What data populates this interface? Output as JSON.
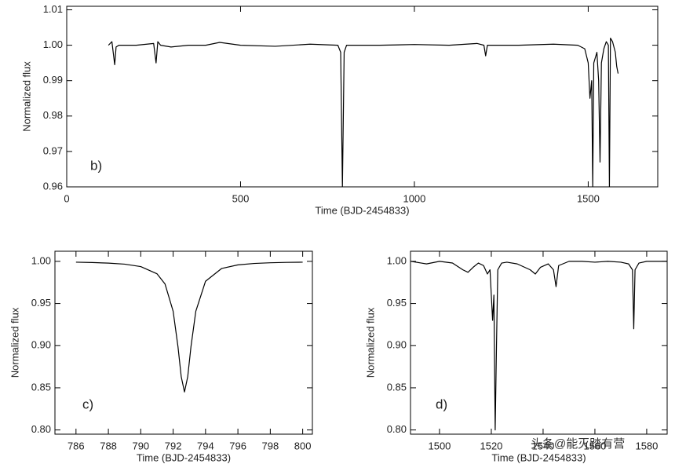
{
  "chart_data": [
    {
      "type": "line",
      "annotation": "b)",
      "x_label": "Time (BJD-2454833)",
      "y_label": "Normalized flux",
      "color": "#000000",
      "xlim": [
        0,
        1700
      ],
      "xticks": [
        0,
        500,
        1000,
        1500
      ],
      "ylim": [
        0.96,
        1.011
      ],
      "yticks": [
        0.96,
        0.97,
        0.98,
        0.99,
        {
          "value": 1,
          "label": "1.00"
        },
        1.01
      ],
      "x": [
        120,
        130,
        138,
        142,
        150,
        200,
        250,
        257,
        262,
        270,
        300,
        350,
        400,
        440,
        500,
        600,
        700,
        780,
        788,
        793,
        798,
        805,
        900,
        1000,
        1100,
        1180,
        1200,
        1205,
        1210,
        1300,
        1400,
        1470,
        1490,
        1500,
        1505,
        1510,
        1513,
        1516,
        1525,
        1530,
        1534,
        1538,
        1545,
        1552,
        1558,
        1561,
        1564,
        1570,
        1578,
        1582,
        1586
      ],
      "values": [
        1.0,
        1.001,
        0.9945,
        0.9995,
        1.0,
        1.0,
        1.0005,
        0.995,
        1.001,
        1.0,
        0.9995,
        1.0,
        1.0,
        1.0008,
        1.0,
        0.9997,
        1.0003,
        1.0,
        0.998,
        0.96,
        0.998,
        1.0,
        1.0,
        1.0002,
        1.0,
        1.0005,
        1.0,
        0.997,
        1.0,
        1.0,
        1.0003,
        1.0,
        0.999,
        0.995,
        0.985,
        0.99,
        0.96,
        0.995,
        0.998,
        0.99,
        0.967,
        0.995,
        0.999,
        1.001,
        1.0,
        0.96,
        1.002,
        1.001,
        0.998,
        0.994,
        0.992
      ]
    },
    {
      "type": "line",
      "annotation": "c)",
      "x_label": "Time (BJD-2454833)",
      "y_label": "Normalized flux",
      "color": "#000000",
      "xlim": [
        784.7,
        800.6
      ],
      "xticks": [
        786,
        788,
        790,
        792,
        794,
        796,
        798,
        800
      ],
      "ylim": [
        0.795,
        1.012
      ],
      "yticks": [
        {
          "value": 0.8,
          "label": "0.80"
        },
        0.85,
        {
          "value": 0.9,
          "label": "0.90"
        },
        0.95,
        {
          "value": 1,
          "label": "1.00"
        }
      ],
      "x": [
        786,
        787,
        788,
        789,
        790,
        791,
        791.5,
        792,
        792.3,
        792.5,
        792.7,
        792.9,
        793.1,
        793.4,
        794,
        795,
        796,
        797,
        798,
        799,
        800
      ],
      "values": [
        0.999,
        0.9986,
        0.9979,
        0.9967,
        0.9938,
        0.9853,
        0.9731,
        0.9408,
        0.8986,
        0.8631,
        0.845,
        0.8631,
        0.8986,
        0.9408,
        0.9764,
        0.9916,
        0.9958,
        0.9975,
        0.9983,
        0.9988,
        0.999
      ]
    },
    {
      "type": "line",
      "annotation": "d)",
      "x_label": "Time (BJD-2454833)",
      "y_label": "Normalized flux",
      "color": "#000000",
      "xlim": [
        1488.8,
        1587.9
      ],
      "xticks": [
        1500,
        1520,
        1540,
        1560,
        1580
      ],
      "ylim": [
        0.795,
        1.012
      ],
      "yticks": [
        {
          "value": 0.8,
          "label": "0.80"
        },
        0.85,
        {
          "value": 0.9,
          "label": "0.90"
        },
        0.95,
        {
          "value": 1,
          "label": "1.00"
        }
      ],
      "x": [
        1489,
        1493,
        1495,
        1500,
        1505,
        1509,
        1511,
        1513,
        1515,
        1517,
        1518.5,
        1519.5,
        1520.5,
        1521,
        1521.5,
        1522,
        1522.5,
        1524,
        1526,
        1530,
        1535,
        1537,
        1539,
        1542,
        1544,
        1545,
        1546,
        1550,
        1555,
        1560,
        1565,
        1570,
        1573,
        1574.5,
        1575,
        1575.5,
        1577,
        1580,
        1588
      ],
      "values": [
        1.0,
        0.998,
        0.997,
        1.0,
        0.998,
        0.99,
        0.987,
        0.993,
        0.998,
        0.995,
        0.985,
        0.99,
        0.93,
        0.96,
        0.8,
        0.9,
        0.99,
        0.998,
        0.999,
        0.997,
        0.99,
        0.985,
        0.993,
        0.997,
        0.99,
        0.97,
        0.995,
        1.0,
        1.0,
        0.999,
        1.0,
        0.999,
        0.997,
        0.99,
        0.92,
        0.99,
        0.998,
        1.0,
        1.0
      ]
    }
  ],
  "watermark": "头条@能灭踏有营"
}
